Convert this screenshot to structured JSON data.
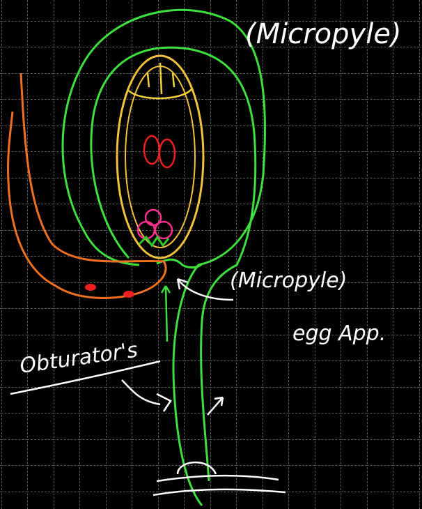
{
  "labels": {
    "micropyle_top": "(Micropyle)",
    "micropyle_mid": "(Micropyle)",
    "egg_apparatus": "egg App.",
    "obturator": "Obturator's"
  }
}
